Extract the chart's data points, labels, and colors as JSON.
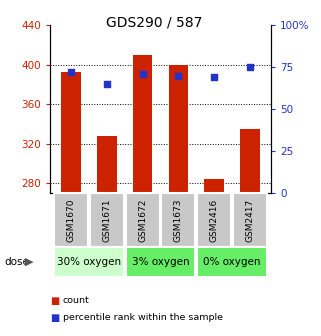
{
  "title": "GDS290 / 587",
  "categories": [
    "GSM1670",
    "GSM1671",
    "GSM1672",
    "GSM1673",
    "GSM2416",
    "GSM2417"
  ],
  "bar_values": [
    393,
    328,
    410,
    400,
    284,
    335
  ],
  "dot_values": [
    72,
    65,
    71,
    70,
    69,
    75
  ],
  "bar_bottom": 270,
  "ylim_left": [
    270,
    440
  ],
  "ylim_right": [
    0,
    100
  ],
  "yticks_left": [
    280,
    320,
    360,
    400,
    440
  ],
  "yticks_right": [
    0,
    25,
    50,
    75,
    100
  ],
  "ytick_labels_right": [
    "0",
    "25",
    "50",
    "75",
    "100%"
  ],
  "bar_color": "#cc2200",
  "dot_color": "#2233cc",
  "group_spans": [
    {
      "start": 0,
      "end": 1,
      "label": "30% oxygen",
      "color": "#ccffcc"
    },
    {
      "start": 2,
      "end": 3,
      "label": "3% oxygen",
      "color": "#66ee66"
    },
    {
      "start": 4,
      "end": 5,
      "label": "0% oxygen",
      "color": "#66ee66"
    }
  ],
  "dose_label": "dose",
  "legend_bar_label": "count",
  "legend_dot_label": "percentile rank within the sample",
  "left_tick_color": "#cc2200",
  "right_tick_color": "#2233cc",
  "label_box_color": "#c8c8c8",
  "label_box_edge": "#ffffff"
}
